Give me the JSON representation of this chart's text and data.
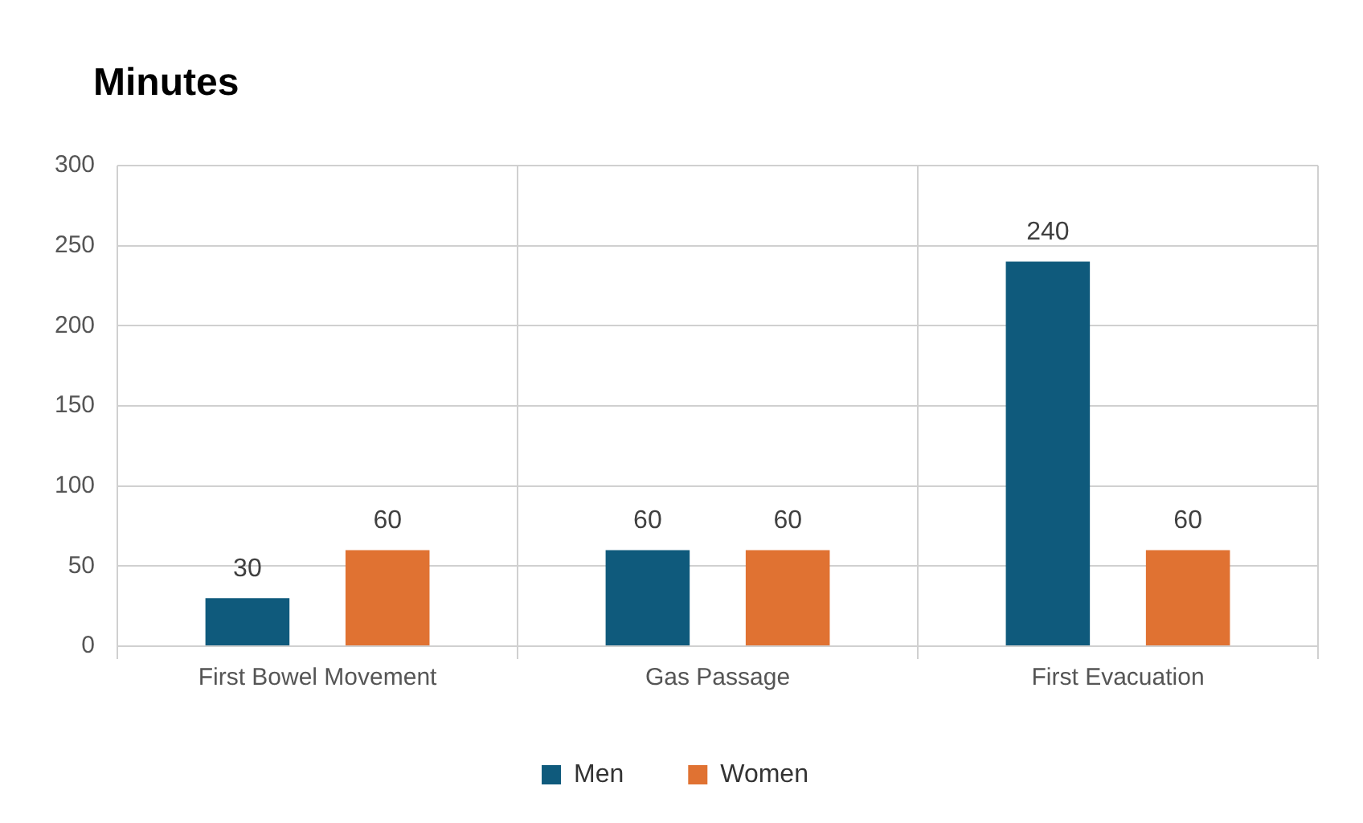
{
  "chart_data": {
    "type": "bar",
    "title": "Minutes",
    "categories": [
      "First Bowel Movement",
      "Gas Passage",
      "First Evacuation"
    ],
    "series": [
      {
        "name": "Men",
        "color": "#0f5a7c",
        "values": [
          30,
          60,
          240
        ]
      },
      {
        "name": "Women",
        "color": "#e07232",
        "values": [
          60,
          60,
          60
        ]
      }
    ],
    "ylim": [
      0,
      300
    ],
    "yticks": [
      0,
      50,
      100,
      150,
      200,
      250,
      300
    ],
    "grid": true,
    "legend": "bottom",
    "data_labels": true
  }
}
